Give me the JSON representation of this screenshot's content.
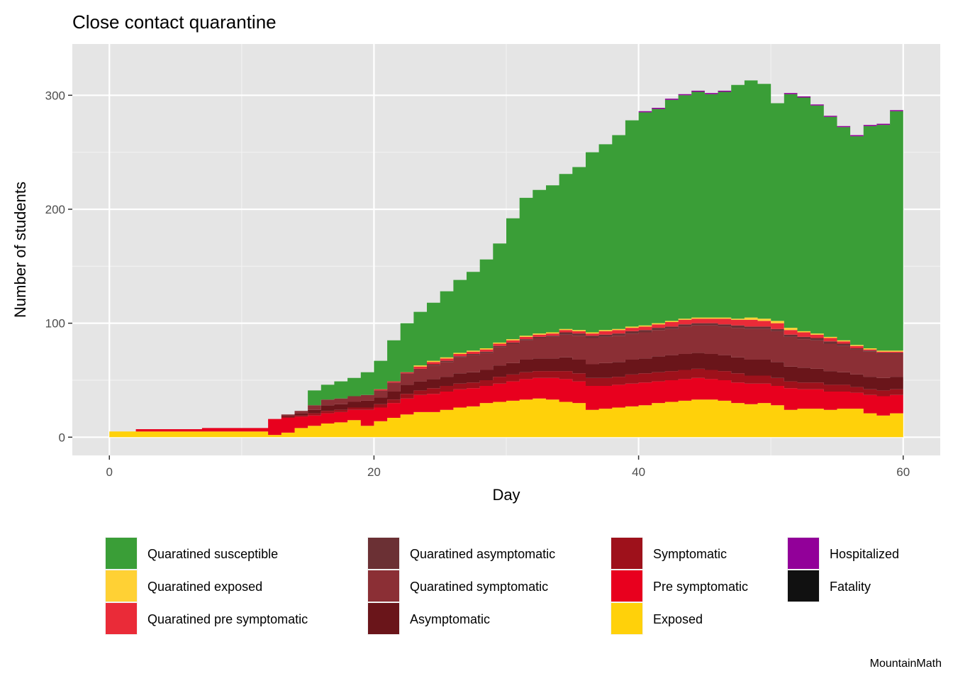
{
  "chart_data": {
    "type": "area",
    "stacked": true,
    "title": "Close contact quarantine",
    "xlabel": "Day",
    "ylabel": "Number of students",
    "caption": "MountainMath",
    "xlim": [
      -2.8,
      62.8
    ],
    "ylim": [
      -16,
      345
    ],
    "x_ticks": [
      0,
      20,
      40,
      60
    ],
    "x_tick_labels": [
      "0",
      "20",
      "40",
      "60"
    ],
    "y_ticks": [
      0,
      100,
      200,
      300
    ],
    "y_tick_labels": [
      "0",
      "100",
      "200",
      "300"
    ],
    "grid": true,
    "legend_position": "bottom",
    "x": [
      0,
      1,
      2,
      3,
      4,
      5,
      6,
      7,
      8,
      9,
      10,
      11,
      12,
      13,
      14,
      15,
      16,
      17,
      18,
      19,
      20,
      21,
      22,
      23,
      24,
      25,
      26,
      27,
      28,
      29,
      30,
      31,
      32,
      33,
      34,
      35,
      36,
      37,
      38,
      39,
      40,
      41,
      42,
      43,
      44,
      45,
      46,
      47,
      48,
      49,
      50,
      51,
      52,
      53,
      54,
      55,
      56,
      57,
      58,
      59,
      60
    ],
    "stack_order_bottom_to_top": [
      "Exposed",
      "Pre symptomatic",
      "Symptomatic",
      "Asymptomatic",
      "Quaratined symptomatic",
      "Quaratined asymptomatic",
      "Quaratined pre symptomatic",
      "Quaratined exposed",
      "Quaratined susceptible",
      "Hospitalized",
      "Fatality"
    ],
    "series": [
      {
        "name": "Exposed",
        "color": "#FFD10A",
        "values": [
          5,
          5,
          5,
          5,
          5,
          5,
          5,
          5,
          5,
          5,
          5,
          5,
          2,
          4,
          8,
          10,
          12,
          13,
          15,
          10,
          14,
          17,
          20,
          22,
          22,
          24,
          26,
          27,
          30,
          31,
          32,
          33,
          34,
          33,
          31,
          30,
          24,
          25,
          26,
          27,
          28,
          30,
          31,
          32,
          33,
          33,
          32,
          30,
          29,
          30,
          28,
          24,
          25,
          25,
          24,
          25,
          25,
          21,
          19,
          21,
          23
        ]
      },
      {
        "name": "Pre symptomatic",
        "color": "#E8001E",
        "values": [
          0,
          0,
          2,
          2,
          2,
          2,
          2,
          3,
          3,
          3,
          3,
          3,
          14,
          13,
          10,
          9,
          9,
          9,
          9,
          14,
          12,
          13,
          14,
          15,
          16,
          16,
          16,
          16,
          15,
          16,
          17,
          18,
          18,
          19,
          20,
          19,
          21,
          20,
          20,
          20,
          20,
          19,
          19,
          19,
          19,
          18,
          18,
          18,
          18,
          17,
          17,
          19,
          17,
          17,
          16,
          15,
          14,
          16,
          17,
          16,
          16
        ]
      },
      {
        "name": "Symptomatic",
        "color": "#9E111B",
        "values": [
          0,
          0,
          0,
          0,
          0,
          0,
          0,
          0,
          0,
          0,
          0,
          0,
          0,
          1,
          1,
          2,
          2,
          2,
          2,
          2,
          3,
          3,
          4,
          4,
          5,
          5,
          5,
          5,
          5,
          6,
          6,
          6,
          6,
          6,
          7,
          7,
          7,
          7,
          7,
          8,
          8,
          8,
          8,
          8,
          8,
          8,
          8,
          8,
          7,
          7,
          7,
          6,
          6,
          6,
          6,
          6,
          5,
          5,
          5,
          5,
          5
        ]
      },
      {
        "name": "Asymptomatic",
        "color": "#6A151A",
        "values": [
          0,
          0,
          0,
          0,
          0,
          0,
          0,
          0,
          0,
          0,
          0,
          0,
          0,
          1,
          2,
          3,
          5,
          5,
          5,
          6,
          6,
          7,
          8,
          8,
          8,
          8,
          9,
          9,
          9,
          10,
          10,
          11,
          11,
          11,
          12,
          12,
          12,
          13,
          13,
          13,
          13,
          14,
          14,
          14,
          14,
          14,
          14,
          14,
          14,
          14,
          14,
          13,
          13,
          12,
          12,
          11,
          11,
          11,
          11,
          11,
          12
        ]
      },
      {
        "name": "Quaratined symptomatic",
        "color": "#8B2F35",
        "values": [
          0,
          0,
          0,
          0,
          0,
          0,
          0,
          0,
          0,
          0,
          0,
          0,
          0,
          1,
          2,
          4,
          5,
          5,
          5,
          5,
          6,
          8,
          10,
          11,
          12,
          13,
          14,
          15,
          15,
          16,
          17,
          17,
          18,
          19,
          20,
          21,
          23,
          23,
          23,
          23,
          23,
          23,
          23,
          24,
          24,
          25,
          25,
          26,
          27,
          27,
          27,
          26,
          25,
          25,
          24,
          23,
          22,
          22,
          21,
          20,
          20
        ]
      },
      {
        "name": "Quaratined asymptomatic",
        "color": "#6B3034",
        "values": [
          0,
          0,
          0,
          0,
          0,
          0,
          0,
          0,
          0,
          0,
          0,
          0,
          0,
          0,
          0,
          0,
          0,
          0,
          0,
          0,
          0,
          0,
          0,
          0,
          1,
          1,
          1,
          1,
          1,
          1,
          1,
          1,
          1,
          1,
          2,
          2,
          2,
          2,
          2,
          2,
          2,
          2,
          2,
          2,
          2,
          2,
          2,
          2,
          2,
          2,
          2,
          2,
          2,
          2,
          2,
          2,
          1,
          1,
          1,
          1,
          1
        ]
      },
      {
        "name": "Quaratined pre symptomatic",
        "color": "#EA2B38",
        "values": [
          0,
          0,
          0,
          0,
          0,
          0,
          0,
          0,
          0,
          0,
          0,
          0,
          0,
          0,
          0,
          0,
          0,
          0,
          0,
          0,
          1,
          1,
          1,
          2,
          2,
          2,
          2,
          2,
          2,
          2,
          2,
          2,
          2,
          2,
          2,
          2,
          2,
          3,
          3,
          3,
          3,
          3,
          4,
          4,
          4,
          4,
          5,
          5,
          6,
          5,
          5,
          4,
          4,
          3,
          3,
          2,
          2,
          1,
          1,
          1,
          1
        ]
      },
      {
        "name": "Quaratined exposed",
        "color": "#FFD134",
        "values": [
          0,
          0,
          0,
          0,
          0,
          0,
          0,
          0,
          0,
          0,
          0,
          0,
          0,
          0,
          0,
          0,
          0,
          0,
          0,
          0,
          0,
          0,
          0,
          1,
          1,
          1,
          1,
          1,
          1,
          1,
          1,
          1,
          1,
          1,
          1,
          1,
          1,
          1,
          1,
          1,
          1,
          1,
          1,
          1,
          1,
          1,
          1,
          1,
          2,
          2,
          2,
          2,
          1,
          1,
          1,
          1,
          1,
          1,
          1,
          1,
          1
        ]
      },
      {
        "name": "Quaratined susceptible",
        "color": "#3A9E37",
        "values": [
          0,
          0,
          0,
          0,
          0,
          0,
          0,
          0,
          0,
          0,
          0,
          0,
          0,
          0,
          0,
          13,
          13,
          15,
          16,
          20,
          25,
          36,
          43,
          47,
          51,
          58,
          64,
          69,
          78,
          87,
          106,
          121,
          126,
          129,
          136,
          143,
          158,
          163,
          170,
          181,
          187,
          188,
          194,
          196,
          198,
          196,
          198,
          205,
          208,
          206,
          191,
          205,
          205,
          200,
          193,
          187,
          183,
          195,
          198,
          210,
          205
        ]
      },
      {
        "name": "Hospitalized",
        "color": "#920099",
        "values": [
          0,
          0,
          0,
          0,
          0,
          0,
          0,
          0,
          0,
          0,
          0,
          0,
          0,
          0,
          0,
          0,
          0,
          0,
          0,
          0,
          0,
          0,
          0,
          0,
          0,
          0,
          0,
          0,
          0,
          0,
          0,
          0,
          0,
          0,
          0,
          0,
          0,
          0,
          0,
          0,
          1,
          1,
          1,
          1,
          1,
          1,
          1,
          0,
          0,
          0,
          0,
          1,
          1,
          1,
          1,
          1,
          1,
          1,
          1,
          1,
          1
        ]
      },
      {
        "name": "Fatality",
        "color": "#111111",
        "values": [
          0,
          0,
          0,
          0,
          0,
          0,
          0,
          0,
          0,
          0,
          0,
          0,
          0,
          0,
          0,
          0,
          0,
          0,
          0,
          0,
          0,
          0,
          0,
          0,
          0,
          0,
          0,
          0,
          0,
          0,
          0,
          0,
          0,
          0,
          0,
          0,
          0,
          0,
          0,
          0,
          0,
          0,
          0,
          0,
          0,
          0,
          0,
          0,
          0,
          0,
          0,
          0,
          0,
          0,
          0,
          0,
          0,
          0,
          0,
          0,
          0
        ]
      }
    ],
    "legend": [
      {
        "label": "Quaratined susceptible",
        "color": "#3A9E37"
      },
      {
        "label": "Quaratined exposed",
        "color": "#FFD134"
      },
      {
        "label": "Quaratined pre symptomatic",
        "color": "#EA2B38"
      },
      {
        "label": "Quaratined asymptomatic",
        "color": "#6B3034"
      },
      {
        "label": "Quaratined symptomatic",
        "color": "#8B2F35"
      },
      {
        "label": "Asymptomatic",
        "color": "#6A151A"
      },
      {
        "label": "Symptomatic",
        "color": "#9E111B"
      },
      {
        "label": "Pre symptomatic",
        "color": "#E8001E"
      },
      {
        "label": "Exposed",
        "color": "#FFD10A"
      },
      {
        "label": "Hospitalized",
        "color": "#920099"
      },
      {
        "label": "Fatality",
        "color": "#111111"
      }
    ]
  }
}
